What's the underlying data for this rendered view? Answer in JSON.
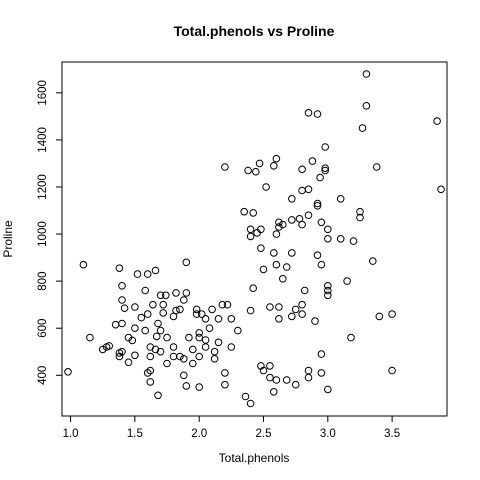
{
  "chart_data": {
    "type": "scatter",
    "title": "Total.phenols vs Proline",
    "xlabel": "Total.phenols",
    "ylabel": "Proline",
    "xlim": [
      0.98,
      3.88
    ],
    "ylim": [
      278,
      1680
    ],
    "x_ticks": [
      1.0,
      1.5,
      2.0,
      2.5,
      3.0,
      3.5
    ],
    "x_tick_labels": [
      "1.0",
      "1.5",
      "2.0",
      "2.5",
      "3.0",
      "3.5"
    ],
    "y_ticks": [
      400,
      600,
      800,
      1000,
      1200,
      1400,
      1600
    ],
    "y_tick_labels": [
      "400",
      "600",
      "800",
      "1000",
      "1200",
      "1400",
      "1600"
    ],
    "grid": false,
    "marker": "open-circle",
    "points": [
      [
        0.98,
        415
      ],
      [
        1.1,
        870
      ],
      [
        1.15,
        560
      ],
      [
        1.25,
        510
      ],
      [
        1.28,
        520
      ],
      [
        1.3,
        525
      ],
      [
        1.35,
        615
      ],
      [
        1.38,
        480
      ],
      [
        1.38,
        495
      ],
      [
        1.4,
        500
      ],
      [
        1.38,
        855
      ],
      [
        1.4,
        720
      ],
      [
        1.4,
        780
      ],
      [
        1.42,
        685
      ],
      [
        1.4,
        620
      ],
      [
        1.45,
        560
      ],
      [
        1.48,
        548
      ],
      [
        1.5,
        690
      ],
      [
        1.5,
        600
      ],
      [
        1.52,
        830
      ],
      [
        1.45,
        455
      ],
      [
        1.5,
        485
      ],
      [
        1.55,
        645
      ],
      [
        1.58,
        760
      ],
      [
        1.58,
        590
      ],
      [
        1.6,
        660
      ],
      [
        1.6,
        830
      ],
      [
        1.62,
        520
      ],
      [
        1.62,
        480
      ],
      [
        1.62,
        372
      ],
      [
        1.64,
        700
      ],
      [
        1.66,
        845
      ],
      [
        1.67,
        565
      ],
      [
        1.66,
        510
      ],
      [
        1.68,
        620
      ],
      [
        1.7,
        740
      ],
      [
        1.7,
        590
      ],
      [
        1.7,
        500
      ],
      [
        1.72,
        700
      ],
      [
        1.72,
        665
      ],
      [
        1.74,
        740
      ],
      [
        1.75,
        560
      ],
      [
        1.75,
        450
      ],
      [
        1.68,
        315
      ],
      [
        1.62,
        420
      ],
      [
        1.6,
        410
      ],
      [
        1.8,
        650
      ],
      [
        1.8,
        520
      ],
      [
        1.8,
        480
      ],
      [
        1.82,
        675
      ],
      [
        1.82,
        750
      ],
      [
        1.85,
        680
      ],
      [
        1.85,
        480
      ],
      [
        1.88,
        720
      ],
      [
        1.88,
        470
      ],
      [
        1.88,
        400
      ],
      [
        1.9,
        880
      ],
      [
        1.9,
        750
      ],
      [
        1.9,
        355
      ],
      [
        1.92,
        560
      ],
      [
        1.95,
        450
      ],
      [
        1.95,
        510
      ],
      [
        1.98,
        680
      ],
      [
        1.98,
        660
      ],
      [
        2.0,
        580
      ],
      [
        2.0,
        560
      ],
      [
        2.0,
        480
      ],
      [
        2.0,
        350
      ],
      [
        2.02,
        660
      ],
      [
        2.05,
        640
      ],
      [
        2.05,
        550
      ],
      [
        2.05,
        520
      ],
      [
        2.08,
        600
      ],
      [
        2.1,
        680
      ],
      [
        2.12,
        500
      ],
      [
        2.12,
        470
      ],
      [
        2.15,
        640
      ],
      [
        2.15,
        540
      ],
      [
        2.18,
        700
      ],
      [
        2.2,
        410
      ],
      [
        2.2,
        360
      ],
      [
        2.2,
        1285
      ],
      [
        2.22,
        700
      ],
      [
        2.25,
        640
      ],
      [
        2.25,
        520
      ],
      [
        2.3,
        590
      ],
      [
        2.35,
        1095
      ],
      [
        2.36,
        310
      ],
      [
        2.38,
        1270
      ],
      [
        2.4,
        1020
      ],
      [
        2.4,
        990
      ],
      [
        2.4,
        675
      ],
      [
        2.4,
        280
      ],
      [
        2.42,
        1090
      ],
      [
        2.42,
        770
      ],
      [
        2.44,
        1265
      ],
      [
        2.45,
        1005
      ],
      [
        2.47,
        1300
      ],
      [
        2.48,
        940
      ],
      [
        2.48,
        1020
      ],
      [
        2.48,
        440
      ],
      [
        2.5,
        850
      ],
      [
        2.5,
        420
      ],
      [
        2.52,
        1200
      ],
      [
        2.55,
        690
      ],
      [
        2.55,
        440
      ],
      [
        2.55,
        390
      ],
      [
        2.58,
        920
      ],
      [
        2.58,
        1290
      ],
      [
        2.58,
        330
      ],
      [
        2.6,
        1320
      ],
      [
        2.6,
        1000
      ],
      [
        2.6,
        870
      ],
      [
        2.6,
        380
      ],
      [
        2.62,
        1050
      ],
      [
        2.62,
        1030
      ],
      [
        2.62,
        690
      ],
      [
        2.62,
        640
      ],
      [
        2.65,
        1040
      ],
      [
        2.65,
        810
      ],
      [
        2.68,
        860
      ],
      [
        2.68,
        380
      ],
      [
        2.72,
        1150
      ],
      [
        2.72,
        1060
      ],
      [
        2.72,
        920
      ],
      [
        2.72,
        650
      ],
      [
        2.75,
        680
      ],
      [
        2.75,
        360
      ],
      [
        2.78,
        1065
      ],
      [
        2.8,
        1275
      ],
      [
        2.8,
        1185
      ],
      [
        2.8,
        1040
      ],
      [
        2.8,
        700
      ],
      [
        2.8,
        660
      ],
      [
        2.82,
        760
      ],
      [
        2.85,
        1515
      ],
      [
        2.85,
        1190
      ],
      [
        2.85,
        1080
      ],
      [
        2.85,
        420
      ],
      [
        2.85,
        390
      ],
      [
        2.88,
        1310
      ],
      [
        2.9,
        630
      ],
      [
        2.92,
        1510
      ],
      [
        2.92,
        1130
      ],
      [
        2.92,
        1120
      ],
      [
        2.92,
        910
      ],
      [
        2.94,
        1240
      ],
      [
        2.95,
        1050
      ],
      [
        2.95,
        870
      ],
      [
        2.95,
        490
      ],
      [
        2.95,
        410
      ],
      [
        2.98,
        1370
      ],
      [
        2.98,
        1280
      ],
      [
        2.98,
        1270
      ],
      [
        3.0,
        1020
      ],
      [
        3.0,
        980
      ],
      [
        3.0,
        780
      ],
      [
        3.0,
        760
      ],
      [
        3.0,
        740
      ],
      [
        3.0,
        340
      ],
      [
        3.1,
        1150
      ],
      [
        3.1,
        980
      ],
      [
        3.15,
        800
      ],
      [
        3.18,
        560
      ],
      [
        3.2,
        970
      ],
      [
        3.25,
        1095
      ],
      [
        3.25,
        1070
      ],
      [
        3.27,
        1450
      ],
      [
        3.3,
        1680
      ],
      [
        3.3,
        1545
      ],
      [
        3.35,
        885
      ],
      [
        3.38,
        1285
      ],
      [
        3.4,
        650
      ],
      [
        3.5,
        420
      ],
      [
        3.5,
        660
      ],
      [
        3.85,
        1480
      ],
      [
        3.88,
        1190
      ]
    ]
  }
}
